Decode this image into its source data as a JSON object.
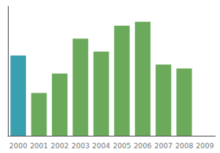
{
  "chart_data": {
    "type": "bar",
    "categories": [
      "2000",
      "2001",
      "2002",
      "2003",
      "2004",
      "2005",
      "2006",
      "2007",
      "2008",
      "2009"
    ],
    "values": [
      62,
      33,
      48,
      75,
      65,
      85,
      88,
      55,
      52,
      0
    ],
    "colors": [
      "#3a9faf",
      "#6aaa5a",
      "#6aaa5a",
      "#6aaa5a",
      "#6aaa5a",
      "#6aaa5a",
      "#6aaa5a",
      "#6aaa5a",
      "#6aaa5a",
      "#6aaa5a"
    ],
    "ylim": [
      0,
      100
    ],
    "grid": false,
    "tick_labels": "x"
  }
}
